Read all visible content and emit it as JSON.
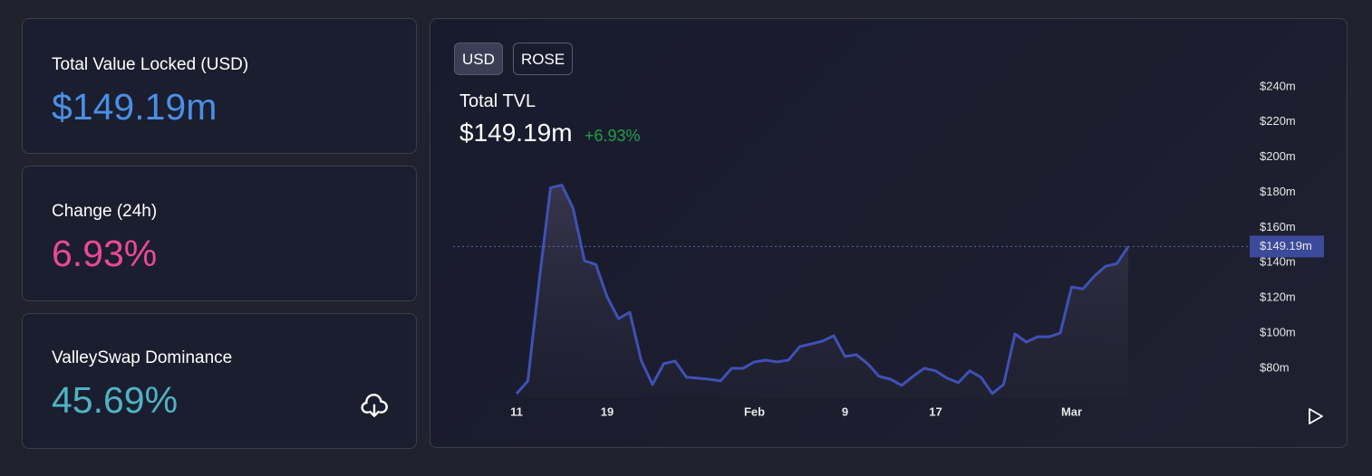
{
  "cards": [
    {
      "label": "Total Value Locked (USD)",
      "value": "$149.19m"
    },
    {
      "label": "Change (24h)",
      "value": "6.93%"
    },
    {
      "label": "ValleySwap Dominance",
      "value": "45.69%"
    }
  ],
  "tabs": [
    "USD",
    "ROSE"
  ],
  "chart_data": {
    "type": "area",
    "title": "Total TVL",
    "current": "$149.19m",
    "change": "+6.93%",
    "color": "#3f51b5",
    "categories": [
      "11",
      null,
      null,
      null,
      null,
      null,
      null,
      null,
      "19",
      null,
      null,
      null,
      null,
      null,
      null,
      null,
      null,
      null,
      null,
      null,
      null,
      "Feb",
      null,
      null,
      null,
      null,
      null,
      null,
      null,
      "9",
      null,
      null,
      null,
      null,
      null,
      null,
      null,
      "17",
      null,
      null,
      null,
      null,
      null,
      null,
      null,
      null,
      null,
      null,
      null,
      "Mar",
      null,
      null,
      null,
      null,
      null
    ],
    "values": [
      65.6,
      72.8,
      129.7,
      182.6,
      184.1,
      170.8,
      141.0,
      139.0,
      120.5,
      108.2,
      111.8,
      84.6,
      70.8,
      82.6,
      84.1,
      74.9,
      74.4,
      73.8,
      72.8,
      80.0,
      80.0,
      83.6,
      84.6,
      83.6,
      84.6,
      92.3,
      93.8,
      95.4,
      98.5,
      86.7,
      87.7,
      82.6,
      75.4,
      73.8,
      70.3,
      75.4,
      80.0,
      78.5,
      74.4,
      71.8,
      78.5,
      74.9,
      65.6,
      70.8,
      99.5,
      94.9,
      97.9,
      97.9,
      100.0,
      126.2,
      125.1,
      132.3,
      138.0,
      139.5,
      149.19
    ],
    "ylim": [
      63,
      243
    ],
    "yticks": [
      {
        "value": 80,
        "label": "$80m"
      },
      {
        "value": 100,
        "label": "$100m"
      },
      {
        "value": 120,
        "label": "$120m"
      },
      {
        "value": 140,
        "label": "$140m"
      },
      {
        "value": 160,
        "label": "$160m"
      },
      {
        "value": 180,
        "label": "$180m"
      },
      {
        "value": 200,
        "label": "$200m"
      },
      {
        "value": 220,
        "label": "$220m"
      },
      {
        "value": 240,
        "label": "$240m"
      }
    ],
    "marker": {
      "value": 149.19,
      "label": "$149.19m"
    }
  }
}
